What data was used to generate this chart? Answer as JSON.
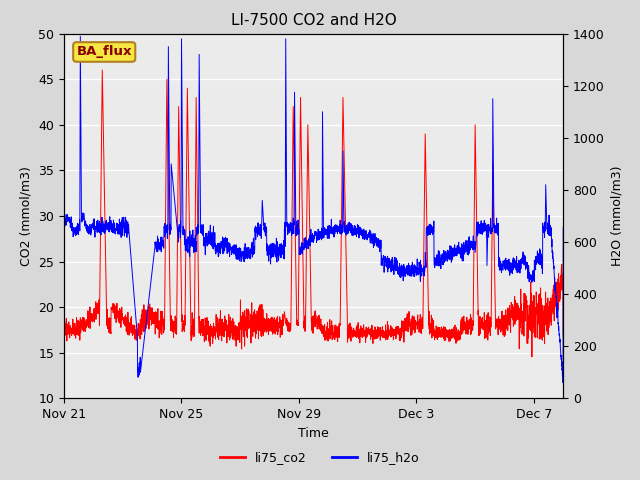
{
  "title": "LI-7500 CO2 and H2O",
  "ylabel_left": "CO2 (mmol/m3)",
  "ylabel_right": "H2O (mmol/m3)",
  "xlabel": "Time",
  "ylim_left": [
    10,
    50
  ],
  "ylim_right": [
    0,
    1400
  ],
  "legend_labels": [
    "li75_co2",
    "li75_h2o"
  ],
  "legend_colors": [
    "red",
    "blue"
  ],
  "annotation_text": "BA_flux",
  "annotation_bg": "#f5e642",
  "annotation_border": "#b08020",
  "annotation_text_color": "#8b0000",
  "plot_bg_color": "#ebebeb",
  "fig_bg_color": "#d8d8d8",
  "title_fontsize": 11,
  "axis_fontsize": 9,
  "tick_fontsize": 9,
  "co2_color": "red",
  "h2o_color": "blue",
  "xtick_labels": [
    "Nov 21",
    "Nov 25",
    "Nov 29",
    "Dec 3",
    "Dec 7"
  ],
  "xtick_offsets_days": [
    0,
    4,
    8,
    12,
    16
  ],
  "xlim": [
    0,
    17
  ]
}
